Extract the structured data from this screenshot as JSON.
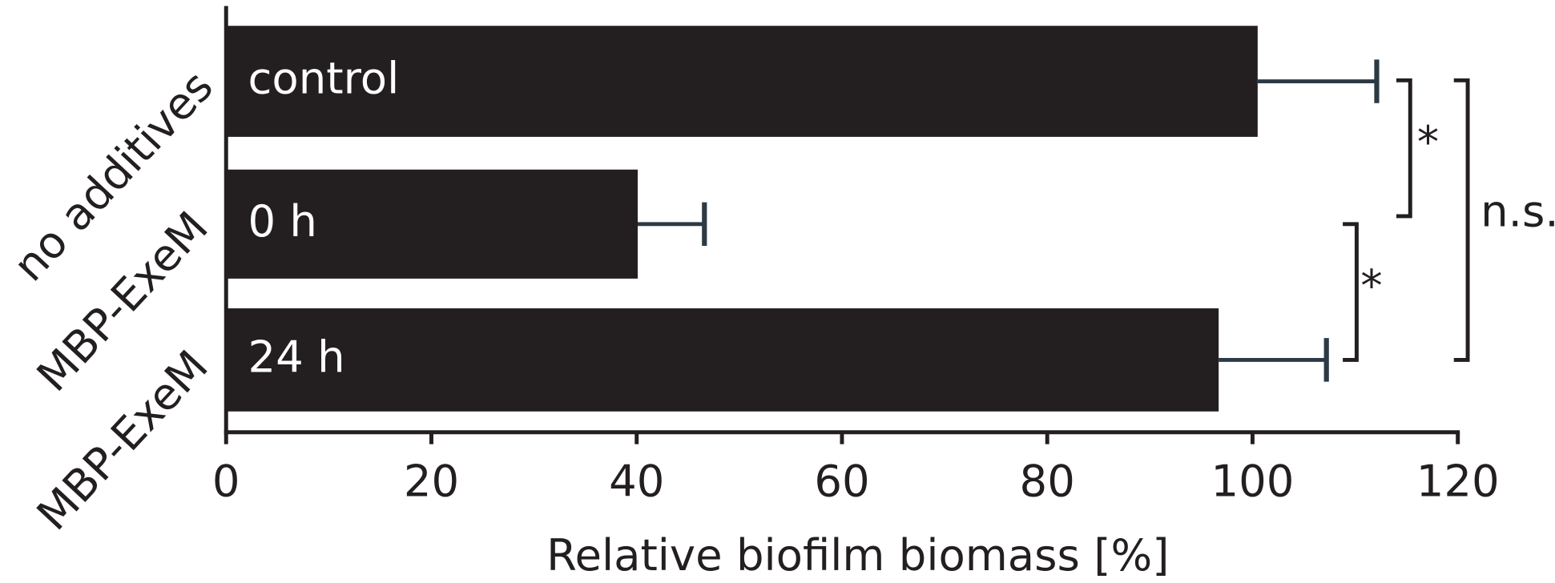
{
  "chart_data": {
    "type": "bar",
    "orientation": "horizontal",
    "categories": [
      "no additives",
      "MBP-ExeM",
      "MBP-ExeM"
    ],
    "bar_labels": [
      "control",
      "0 h",
      "24 h"
    ],
    "values": [
      100.5,
      40.1,
      96.7
    ],
    "errors": [
      11.6,
      6.5,
      10.5
    ],
    "color": "#231f20",
    "xlabel": "Relative biofilm biomass [%]",
    "xlim": [
      0,
      120
    ],
    "xticks": [
      0,
      20,
      40,
      60,
      80,
      100,
      120
    ],
    "annotations": [
      "*",
      "*",
      "n.s."
    ]
  }
}
